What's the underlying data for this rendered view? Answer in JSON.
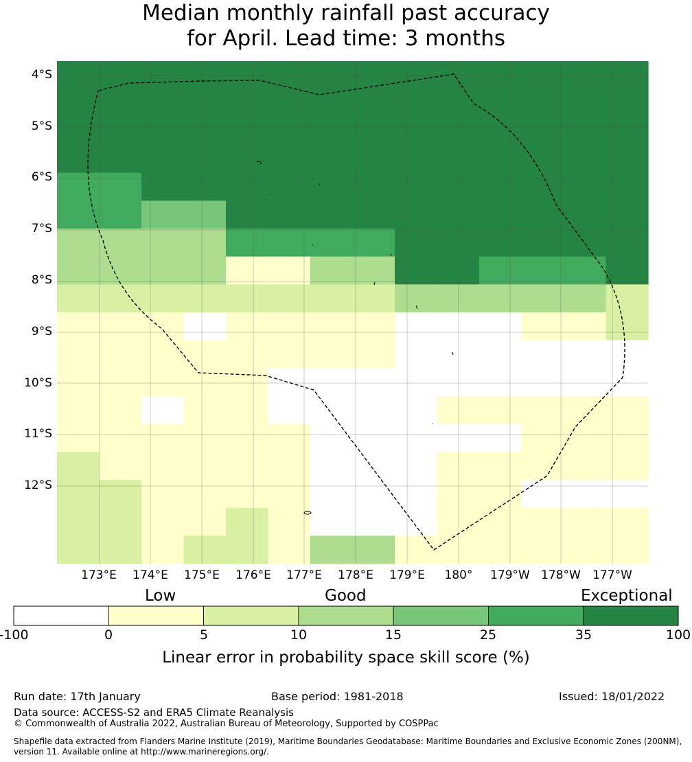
{
  "title": {
    "line1": "Median monthly rainfall past accuracy",
    "line2": "for April. Lead time: 3 months"
  },
  "map": {
    "latitude_labels": [
      "4°S",
      "5°S",
      "6°S",
      "7°S",
      "8°S",
      "9°S",
      "10°S",
      "11°S",
      "12°S"
    ],
    "longitude_labels": [
      "173°E",
      "174°E",
      "175°E",
      "176°E",
      "177°E",
      "178°E",
      "179°E",
      "180°",
      "179°W",
      "178°W",
      "177°W"
    ],
    "boundary_style": "dashed black line",
    "grid_columns": 14,
    "grid_rows": 18,
    "skill_grid": [
      "66666666666666",
      "66666666666666",
      "66666666666666",
      "66666666666666",
      "55666666666666",
      "55446666666666",
      "33335555666666",
      "33331133665556",
      "22222222333332",
      "11101111000112",
      "11111111000000",
      "11111000000000",
      "11011000011111",
      "11111100000111",
      "21111100011111",
      "22111100011000",
      "22112100011111",
      "22122133111111"
    ]
  },
  "legend": {
    "categories": [
      "Low",
      "Good",
      "Exceptional"
    ],
    "bins": [
      {
        "from": -100,
        "to": 0,
        "color": "#ffffff"
      },
      {
        "from": 0,
        "to": 5,
        "color": "#ffffcc"
      },
      {
        "from": 5,
        "to": 10,
        "color": "#d9f0a3"
      },
      {
        "from": 10,
        "to": 15,
        "color": "#addd8e"
      },
      {
        "from": 15,
        "to": 25,
        "color": "#78c679"
      },
      {
        "from": 25,
        "to": 35,
        "color": "#41ab5d"
      },
      {
        "from": 35,
        "to": 100,
        "color": "#238443"
      }
    ],
    "ticks": [
      "-100",
      "0",
      "5",
      "10",
      "15",
      "25",
      "35",
      "100"
    ],
    "label": "Linear error in probability space skill score (%)"
  },
  "footer": {
    "run_date": "Run date: 17th January",
    "base_period": "Base period: 1981-2018",
    "issued": "Issued: 18/01/2022",
    "data_source": "Data source: ACCESS-S2 and ERA5 Climate Reanalysis",
    "copyright": "© Commonwealth of Australia 2022, Australian Bureau of Meteorology, Supported by COSPPac",
    "shapefile_line1": "Shapefile data extracted from Flanders Marine Institute (2019), Maritime Boundaries Geodatabase: Maritime Boundaries and Exclusive Economic Zones (200NM),",
    "shapefile_line2": "version 11. Available online at http://www.marineregions.org/."
  }
}
